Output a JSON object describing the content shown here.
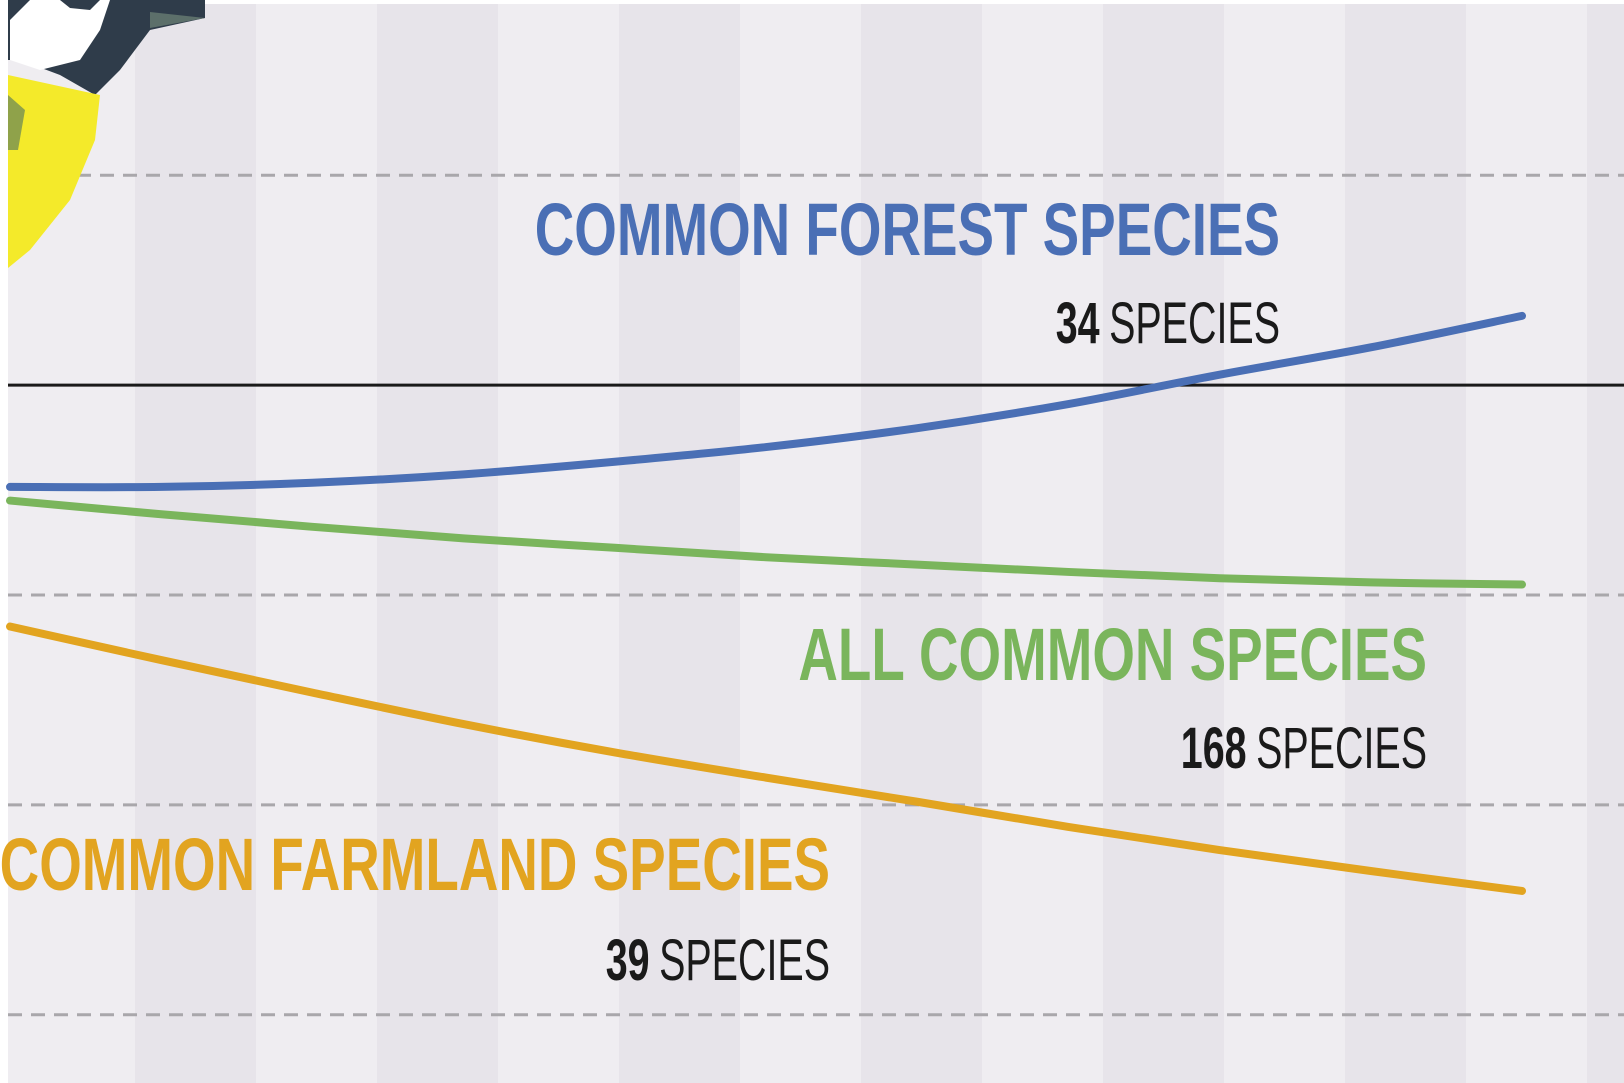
{
  "chart_data": {
    "type": "line",
    "x": [
      0,
      1,
      2,
      3,
      4,
      5,
      6,
      7,
      8,
      9,
      10
    ],
    "xlim": [
      0,
      10
    ],
    "ylim": [
      33.5,
      136.7
    ],
    "baseline": 100,
    "yticks": [
      40,
      60,
      80,
      120
    ],
    "grid": true,
    "series": [
      {
        "name": "COMMON FOREST SPECIES",
        "count": 34,
        "unit": "SPECIES",
        "color": "#4a6fb5",
        "values": [
          90.3,
          90.3,
          90.7,
          91.5,
          92.7,
          94.1,
          95.9,
          98.2,
          101.0,
          103.6,
          106.6
        ]
      },
      {
        "name": "ALL COMMON SPECIES",
        "count": 168,
        "unit": "SPECIES",
        "color": "#7ab55c",
        "values": [
          89.0,
          87.7,
          86.5,
          85.4,
          84.5,
          83.6,
          82.9,
          82.2,
          81.6,
          81.2,
          81.0
        ]
      },
      {
        "name": "COMMON FARMLAND SPECIES",
        "count": 39,
        "unit": "SPECIES",
        "color": "#e2a420",
        "values": [
          77.0,
          73.8,
          70.7,
          67.7,
          65.0,
          62.6,
          60.3,
          57.9,
          55.7,
          53.7,
          51.8
        ]
      }
    ]
  }
}
